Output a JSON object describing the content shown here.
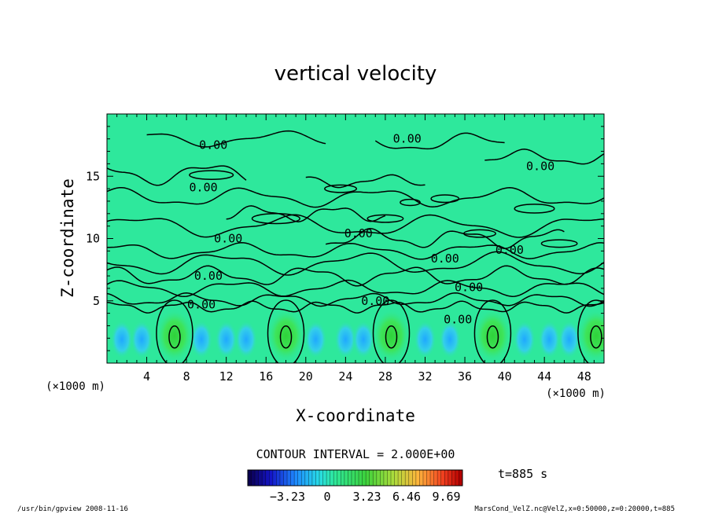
{
  "chart_data": {
    "type": "heatmap",
    "title": "vertical velocity",
    "xlabel": "X-coordinate",
    "ylabel": "Z-coordinate",
    "x_unit": "(×1000 m)",
    "y_unit": "(×1000 m)",
    "xlim": [
      0,
      50
    ],
    "ylim": [
      0,
      20
    ],
    "x_ticks": [
      4,
      8,
      12,
      16,
      20,
      24,
      28,
      32,
      36,
      40,
      44,
      48
    ],
    "y_ticks": [
      5,
      10,
      15
    ],
    "contour_interval_text": "CONTOUR INTERVAL = 2.000E+00",
    "contour_label": "0.00",
    "contour_label_positions": [
      {
        "x": 10.7,
        "z": 17.5
      },
      {
        "x": 30.2,
        "z": 18.0
      },
      {
        "x": 43.6,
        "z": 15.8
      },
      {
        "x": 9.7,
        "z": 14.1
      },
      {
        "x": 25.3,
        "z": 10.4
      },
      {
        "x": 12.2,
        "z": 10.0
      },
      {
        "x": 40.5,
        "z": 9.1
      },
      {
        "x": 34.0,
        "z": 8.4
      },
      {
        "x": 10.2,
        "z": 7.0
      },
      {
        "x": 36.4,
        "z": 6.1
      },
      {
        "x": 9.5,
        "z": 4.7
      },
      {
        "x": 27.0,
        "z": 5.0
      },
      {
        "x": 35.3,
        "z": 3.5
      }
    ],
    "updrafts_x": [
      6.8,
      18.0,
      28.6,
      38.8,
      49.2
    ],
    "time_label": "t=885 s",
    "colorbar": {
      "ticks": [
        "-3.23",
        "0",
        "3.23",
        "6.46",
        "9.69"
      ],
      "min": -6.46,
      "max": 11.0
    },
    "colors": {
      "background_field": "#2ee89c",
      "updraft": "#3ad232",
      "downdraft": "#2bb8ff",
      "contour": "#000000"
    }
  },
  "footer": {
    "left": "/usr/bin/gpview   2008-11-16",
    "right": "MarsCond_VelZ.nc@VelZ,x=0:50000,z=0:20000,t=885"
  }
}
